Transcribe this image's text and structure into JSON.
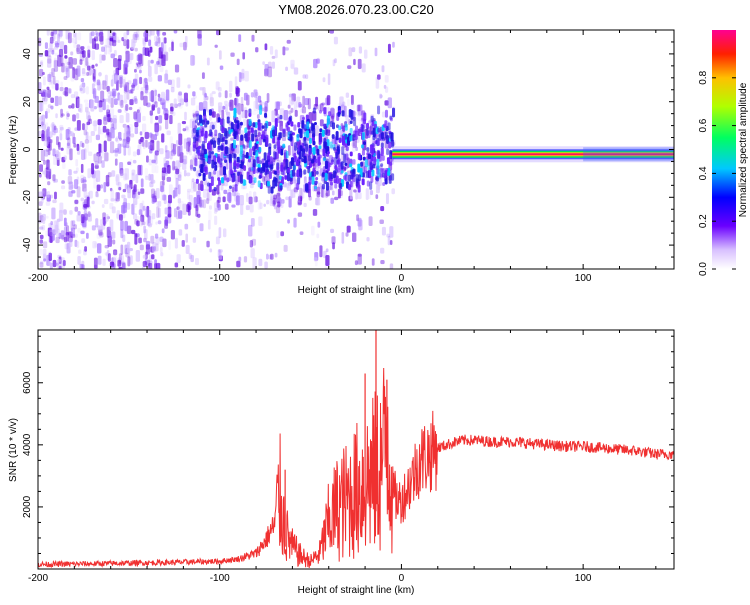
{
  "title": "YM08.2026.070.23.00.C20",
  "chart_data": [
    {
      "type": "heatmap",
      "xlabel": "Height of straight line (km)",
      "ylabel": "Frequency (Hz)",
      "xlim": [
        -200,
        150
      ],
      "ylim": [
        -50,
        50
      ],
      "xticks": [
        -200,
        -100,
        0,
        100
      ],
      "yticks": [
        -40,
        -20,
        0,
        20,
        40
      ],
      "colorbar": {
        "label": "Normalized spectral amplitude",
        "range": [
          0,
          1
        ],
        "ticks": [
          "0.0",
          "0.2",
          "0.4",
          "0.6",
          "0.8"
        ],
        "colormap": "rainbow (white-violet-blue-cyan-green-yellow-red-magenta)"
      },
      "description_values": {
        "carrier_frequency_hz": -2,
        "carrier_start_km": -5,
        "scatter_region_km": [
          -200,
          -5
        ],
        "dense_cluster_km": [
          -115,
          -5
        ]
      },
      "grid": false
    },
    {
      "type": "line",
      "xlabel": "Height of straight line (km)",
      "ylabel": "SNR (10 * v/v)",
      "xlim": [
        -200,
        150
      ],
      "ylim": [
        0,
        7700
      ],
      "xticks": [
        -200,
        -100,
        0,
        100
      ],
      "yticks": [
        2000,
        4000,
        6000
      ],
      "color": "#f03030",
      "series": [
        {
          "x": [
            -200,
            -180,
            -160,
            -140,
            -120,
            -100,
            -90,
            -80,
            -75,
            -70,
            -67,
            -64,
            -60,
            -55,
            -50,
            -45,
            -40,
            -35,
            -30,
            -25,
            -20,
            -15,
            -10,
            -8,
            -5,
            -2,
            0,
            5,
            10,
            15,
            20,
            25,
            30,
            35,
            40,
            50,
            60,
            70,
            80,
            90,
            100,
            110,
            120,
            130,
            140,
            150
          ],
          "y": [
            150,
            160,
            180,
            200,
            220,
            250,
            320,
            500,
            900,
            1400,
            2400,
            1200,
            700,
            400,
            250,
            500,
            1500,
            2000,
            2200,
            2500,
            2800,
            3000,
            3500,
            5000,
            2500,
            2200,
            2200,
            2800,
            3500,
            3700,
            3900,
            4000,
            4100,
            4150,
            4150,
            4100,
            4100,
            4050,
            4000,
            3950,
            3950,
            3900,
            3850,
            3800,
            3700,
            3700
          ]
        }
      ],
      "peaks": [
        {
          "x": -64,
          "y": 3200
        },
        {
          "x": -14,
          "y": 7700
        },
        {
          "x": -20,
          "y": 6300
        },
        {
          "x": -8,
          "y": 6100
        }
      ],
      "grid": false
    }
  ]
}
